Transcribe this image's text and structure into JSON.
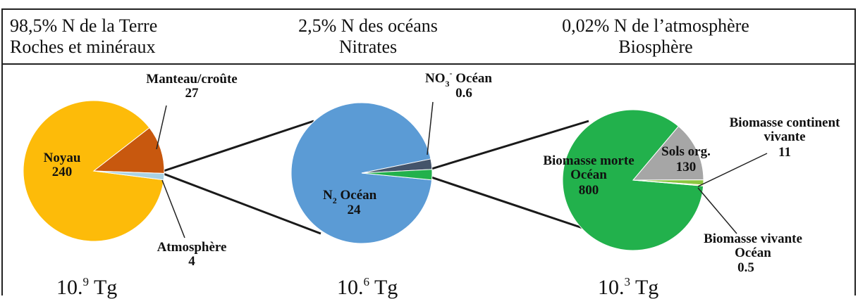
{
  "header": {
    "cols": [
      {
        "line1": "98,5% N de la Terre",
        "line2": "Roches et minéraux"
      },
      {
        "line1": "2,5% N des océans",
        "line2": "Nitrates"
      },
      {
        "line1": "0,02% N de l’atmosphère",
        "line2": "Biosphère"
      }
    ]
  },
  "chart_data": [
    {
      "type": "pie",
      "total": {
        "base": "10.",
        "exp": "9",
        "unit": " Tg"
      },
      "slices": [
        {
          "name": "Noyau",
          "value": 240,
          "color": "#FDBB09"
        },
        {
          "name": "Manteau/croûte",
          "value": 27,
          "color": "#C8580E"
        },
        {
          "name": "Atmosphère",
          "value": 4,
          "color": "#A9D2E4"
        }
      ]
    },
    {
      "type": "pie",
      "total": {
        "base": "10.",
        "exp": "6",
        "unit": " Tg"
      },
      "slices": [
        {
          "name": "N2 Océan",
          "value": 24,
          "color": "#5B9BD5"
        },
        {
          "name": "NO3- Océan",
          "value": 0.6,
          "color": "#44546A"
        },
        {
          "name": "Biosphère",
          "value": 0.6,
          "color": "#22B14C"
        }
      ]
    },
    {
      "type": "pie",
      "total": {
        "base": "10.",
        "exp": "3",
        "unit": " Tg"
      },
      "slices": [
        {
          "name": "Biomasse morte Océan",
          "value": 800,
          "color": "#22B14C"
        },
        {
          "name": "Sols org.",
          "value": 130,
          "color": "#A6A6A6"
        },
        {
          "name": "Biomasse continent vivante",
          "value": 11,
          "color": "#8CC63F"
        },
        {
          "name": "Biomasse vivante Océan",
          "value": 0.5,
          "color": "#FFE43A"
        }
      ]
    }
  ],
  "labels": {
    "noyau": {
      "name": "Noyau",
      "value": "240"
    },
    "manteau": {
      "name": "Manteau/croûte",
      "value": "27"
    },
    "atmosphere": {
      "name": "Atmosphère",
      "value": "4"
    },
    "no3": {
      "name_base": "NO",
      "sub": "3",
      "sup": "-",
      "name_rest": " Océan",
      "value": "0.6"
    },
    "n2": {
      "name_base": "N",
      "sub": "2",
      "name_rest": " Océan",
      "value": "24"
    },
    "biomorte": {
      "line1": "Biomasse morte",
      "line2": "Océan",
      "value": "800"
    },
    "sols": {
      "name": "Sols org.",
      "value": "130"
    },
    "biocont": {
      "line1": "Biomasse continent",
      "line2": "vivante",
      "value": "11"
    },
    "biovivo": {
      "line1": "Biomasse vivante",
      "line2": "Océan",
      "value": "0.5"
    }
  }
}
